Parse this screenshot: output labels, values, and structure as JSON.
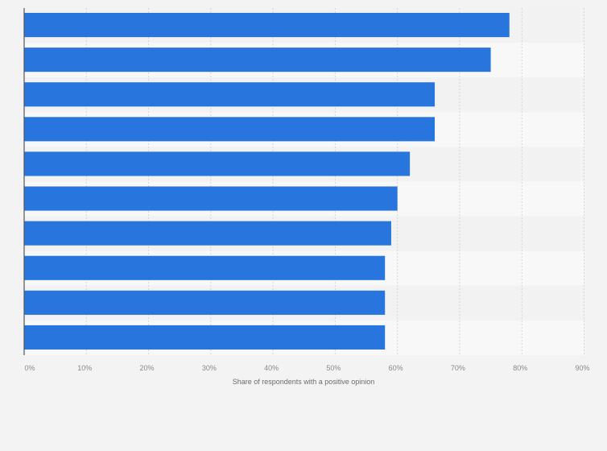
{
  "chart_data": {
    "type": "bar",
    "orientation": "horizontal",
    "title": "",
    "xlabel": "Share of respondents with a positive opinion",
    "ylabel": "",
    "values": [
      78,
      75,
      66,
      66,
      62,
      60,
      59,
      58,
      58,
      58
    ],
    "xlim": [
      0,
      90
    ],
    "xticks": [
      0,
      10,
      20,
      30,
      40,
      50,
      60,
      70,
      80,
      90
    ],
    "xtick_labels": [
      "0%",
      "10%",
      "20%",
      "30%",
      "40%",
      "50%",
      "60%",
      "70%",
      "80%",
      "90%"
    ],
    "grid": true,
    "bar_color": "#2876dd"
  }
}
